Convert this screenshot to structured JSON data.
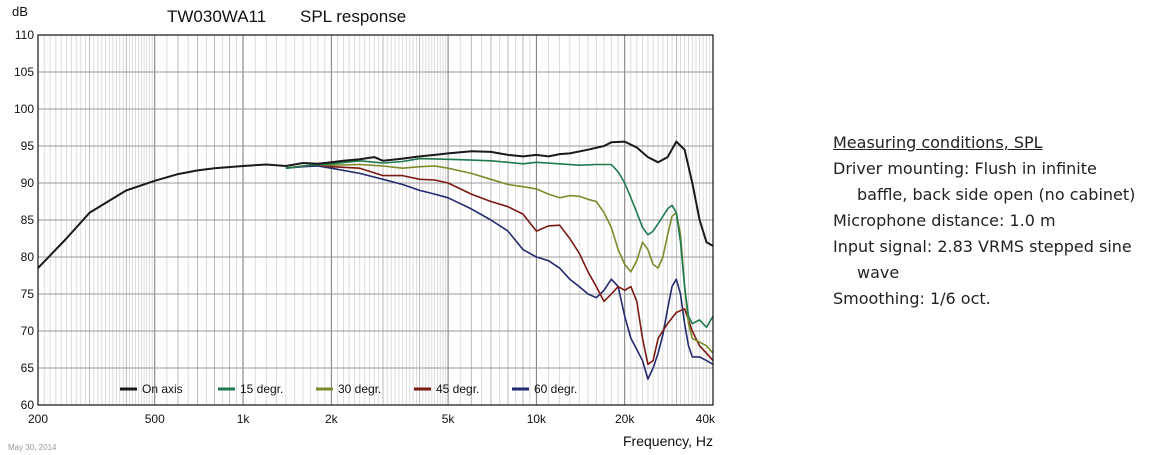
{
  "chart_data": {
    "type": "line",
    "title_model": "TW030WA11",
    "title_label": "SPL response",
    "ylabel": "dB",
    "xlabel": "Frequency, Hz",
    "x_scale": "log",
    "xlim": [
      200,
      40000
    ],
    "ylim": [
      60,
      110
    ],
    "y_ticks": [
      60,
      65,
      70,
      75,
      80,
      85,
      90,
      95,
      100,
      105,
      110
    ],
    "x_ticks": [
      {
        "value": 200,
        "label": "200"
      },
      {
        "value": 500,
        "label": "500"
      },
      {
        "value": 1000,
        "label": "1k"
      },
      {
        "value": 2000,
        "label": "2k"
      },
      {
        "value": 5000,
        "label": "5k"
      },
      {
        "value": 10000,
        "label": "10k"
      },
      {
        "value": 20000,
        "label": "20k"
      },
      {
        "value": 40000,
        "label": "40k"
      }
    ],
    "grid": true,
    "legend_position": "bottom",
    "series": [
      {
        "name": "On axis",
        "color": "#1a1a1a",
        "points": [
          [
            200,
            78.5
          ],
          [
            250,
            82.5
          ],
          [
            300,
            86
          ],
          [
            400,
            89
          ],
          [
            500,
            90.3
          ],
          [
            600,
            91.2
          ],
          [
            700,
            91.7
          ],
          [
            800,
            92
          ],
          [
            1000,
            92.3
          ],
          [
            1200,
            92.5
          ],
          [
            1400,
            92.3
          ],
          [
            1600,
            92.7
          ],
          [
            1800,
            92.6
          ],
          [
            2000,
            92.8
          ],
          [
            2200,
            93
          ],
          [
            2500,
            93.2
          ],
          [
            2800,
            93.5
          ],
          [
            3000,
            93
          ],
          [
            3500,
            93.3
          ],
          [
            4000,
            93.6
          ],
          [
            4500,
            93.8
          ],
          [
            5000,
            94
          ],
          [
            6000,
            94.3
          ],
          [
            7000,
            94.2
          ],
          [
            8000,
            93.8
          ],
          [
            9000,
            93.6
          ],
          [
            10000,
            93.8
          ],
          [
            11000,
            93.6
          ],
          [
            12000,
            93.9
          ],
          [
            13000,
            94
          ],
          [
            15000,
            94.5
          ],
          [
            17000,
            95
          ],
          [
            18000,
            95.5
          ],
          [
            20000,
            95.6
          ],
          [
            22000,
            94.8
          ],
          [
            24000,
            93.5
          ],
          [
            26000,
            92.8
          ],
          [
            28000,
            93.5
          ],
          [
            30000,
            95.6
          ],
          [
            32000,
            94.5
          ],
          [
            34000,
            90
          ],
          [
            36000,
            85
          ],
          [
            38000,
            82
          ],
          [
            40000,
            81.5
          ]
        ]
      },
      {
        "name": "15 degr.",
        "color": "#1f7a4f",
        "points": [
          [
            1400,
            92
          ],
          [
            1600,
            92.3
          ],
          [
            1800,
            92.5
          ],
          [
            2000,
            92.6
          ],
          [
            2500,
            93
          ],
          [
            3000,
            92.7
          ],
          [
            3500,
            92.9
          ],
          [
            4000,
            93.3
          ],
          [
            5000,
            93.2
          ],
          [
            6000,
            93.1
          ],
          [
            7000,
            93
          ],
          [
            8000,
            92.8
          ],
          [
            9000,
            92.6
          ],
          [
            10000,
            92.8
          ],
          [
            12000,
            92.6
          ],
          [
            14000,
            92.4
          ],
          [
            16000,
            92.5
          ],
          [
            18000,
            92.5
          ],
          [
            19000,
            91.5
          ],
          [
            20000,
            90
          ],
          [
            21000,
            88
          ],
          [
            22000,
            86
          ],
          [
            23000,
            84
          ],
          [
            24000,
            83
          ],
          [
            25000,
            83.5
          ],
          [
            26000,
            84.5
          ],
          [
            27000,
            85.5
          ],
          [
            28000,
            86.5
          ],
          [
            29000,
            87
          ],
          [
            30000,
            86
          ],
          [
            31000,
            82
          ],
          [
            32000,
            76
          ],
          [
            33000,
            72
          ],
          [
            34000,
            71
          ],
          [
            36000,
            71.5
          ],
          [
            38000,
            70.5
          ],
          [
            40000,
            72
          ]
        ]
      },
      {
        "name": "30 degr.",
        "color": "#7e8a2a",
        "points": [
          [
            1400,
            92
          ],
          [
            1600,
            92.3
          ],
          [
            1800,
            92.5
          ],
          [
            2000,
            92.4
          ],
          [
            2500,
            92.5
          ],
          [
            3000,
            92.3
          ],
          [
            3500,
            92
          ],
          [
            4000,
            92.2
          ],
          [
            4500,
            92.3
          ],
          [
            5000,
            92
          ],
          [
            6000,
            91.3
          ],
          [
            7000,
            90.5
          ],
          [
            8000,
            89.8
          ],
          [
            9000,
            89.5
          ],
          [
            10000,
            89.2
          ],
          [
            11000,
            88.5
          ],
          [
            12000,
            88
          ],
          [
            13000,
            88.3
          ],
          [
            14000,
            88.2
          ],
          [
            15000,
            87.8
          ],
          [
            16000,
            87.5
          ],
          [
            17000,
            86
          ],
          [
            18000,
            84
          ],
          [
            19000,
            81
          ],
          [
            20000,
            79
          ],
          [
            21000,
            78
          ],
          [
            22000,
            79.5
          ],
          [
            23000,
            82
          ],
          [
            24000,
            81
          ],
          [
            25000,
            79
          ],
          [
            26000,
            78.5
          ],
          [
            27000,
            80
          ],
          [
            28000,
            83
          ],
          [
            29000,
            85.5
          ],
          [
            30000,
            86
          ],
          [
            31000,
            83
          ],
          [
            32000,
            76
          ],
          [
            33000,
            71
          ],
          [
            34000,
            69
          ],
          [
            36000,
            68.5
          ],
          [
            38000,
            68
          ],
          [
            40000,
            67
          ]
        ]
      },
      {
        "name": "45 degr.",
        "color": "#7a1a12",
        "points": [
          [
            1400,
            92
          ],
          [
            1600,
            92.3
          ],
          [
            1800,
            92.5
          ],
          [
            2000,
            92.2
          ],
          [
            2500,
            92
          ],
          [
            3000,
            91
          ],
          [
            3500,
            91
          ],
          [
            4000,
            90.5
          ],
          [
            4500,
            90.4
          ],
          [
            5000,
            90
          ],
          [
            6000,
            88.5
          ],
          [
            7000,
            87.5
          ],
          [
            8000,
            86.8
          ],
          [
            9000,
            85.8
          ],
          [
            10000,
            83.5
          ],
          [
            11000,
            84.2
          ],
          [
            12000,
            84.3
          ],
          [
            13000,
            82.5
          ],
          [
            14000,
            80.5
          ],
          [
            15000,
            78
          ],
          [
            16000,
            76
          ],
          [
            17000,
            74
          ],
          [
            18000,
            75
          ],
          [
            19000,
            76
          ],
          [
            20000,
            75.5
          ],
          [
            21000,
            76
          ],
          [
            22000,
            74
          ],
          [
            23000,
            69
          ],
          [
            24000,
            65.5
          ],
          [
            25000,
            66
          ],
          [
            26000,
            69
          ],
          [
            28000,
            71
          ],
          [
            30000,
            72.5
          ],
          [
            32000,
            73
          ],
          [
            34000,
            70
          ],
          [
            36000,
            68
          ],
          [
            38000,
            67
          ],
          [
            40000,
            66
          ]
        ]
      },
      {
        "name": "60 degr.",
        "color": "#232a6e",
        "points": [
          [
            1400,
            92
          ],
          [
            1600,
            92.2
          ],
          [
            1800,
            92.3
          ],
          [
            2000,
            92
          ],
          [
            2500,
            91.3
          ],
          [
            3000,
            90.5
          ],
          [
            3500,
            89.8
          ],
          [
            4000,
            89
          ],
          [
            4500,
            88.5
          ],
          [
            5000,
            88
          ],
          [
            6000,
            86.5
          ],
          [
            7000,
            85
          ],
          [
            8000,
            83.5
          ],
          [
            9000,
            81
          ],
          [
            10000,
            80
          ],
          [
            11000,
            79.5
          ],
          [
            12000,
            78.5
          ],
          [
            13000,
            77
          ],
          [
            14000,
            76
          ],
          [
            15000,
            75
          ],
          [
            16000,
            74.5
          ],
          [
            17000,
            75.5
          ],
          [
            18000,
            77
          ],
          [
            19000,
            76
          ],
          [
            20000,
            72
          ],
          [
            21000,
            69
          ],
          [
            22000,
            67.5
          ],
          [
            23000,
            66
          ],
          [
            24000,
            63.5
          ],
          [
            25000,
            65
          ],
          [
            26000,
            67
          ],
          [
            27000,
            69.5
          ],
          [
            28000,
            73
          ],
          [
            29000,
            76
          ],
          [
            30000,
            77
          ],
          [
            31000,
            75
          ],
          [
            32000,
            71
          ],
          [
            33000,
            68
          ],
          [
            34000,
            66.5
          ],
          [
            36000,
            66.5
          ],
          [
            38000,
            66
          ],
          [
            40000,
            65.5
          ]
        ]
      }
    ]
  },
  "date_label": "May 30, 2014",
  "notes": {
    "heading": "Measuring conditions, SPL",
    "line1": "Driver mounting: Flush in infinite",
    "line2": "baffle, back side open  (no cabinet)",
    "line3": "Microphone distance: 1.0 m",
    "line4": "Input signal: 2.83 VRMS stepped sine",
    "line5": "wave",
    "line6": "Smoothing: 1/6 oct."
  }
}
